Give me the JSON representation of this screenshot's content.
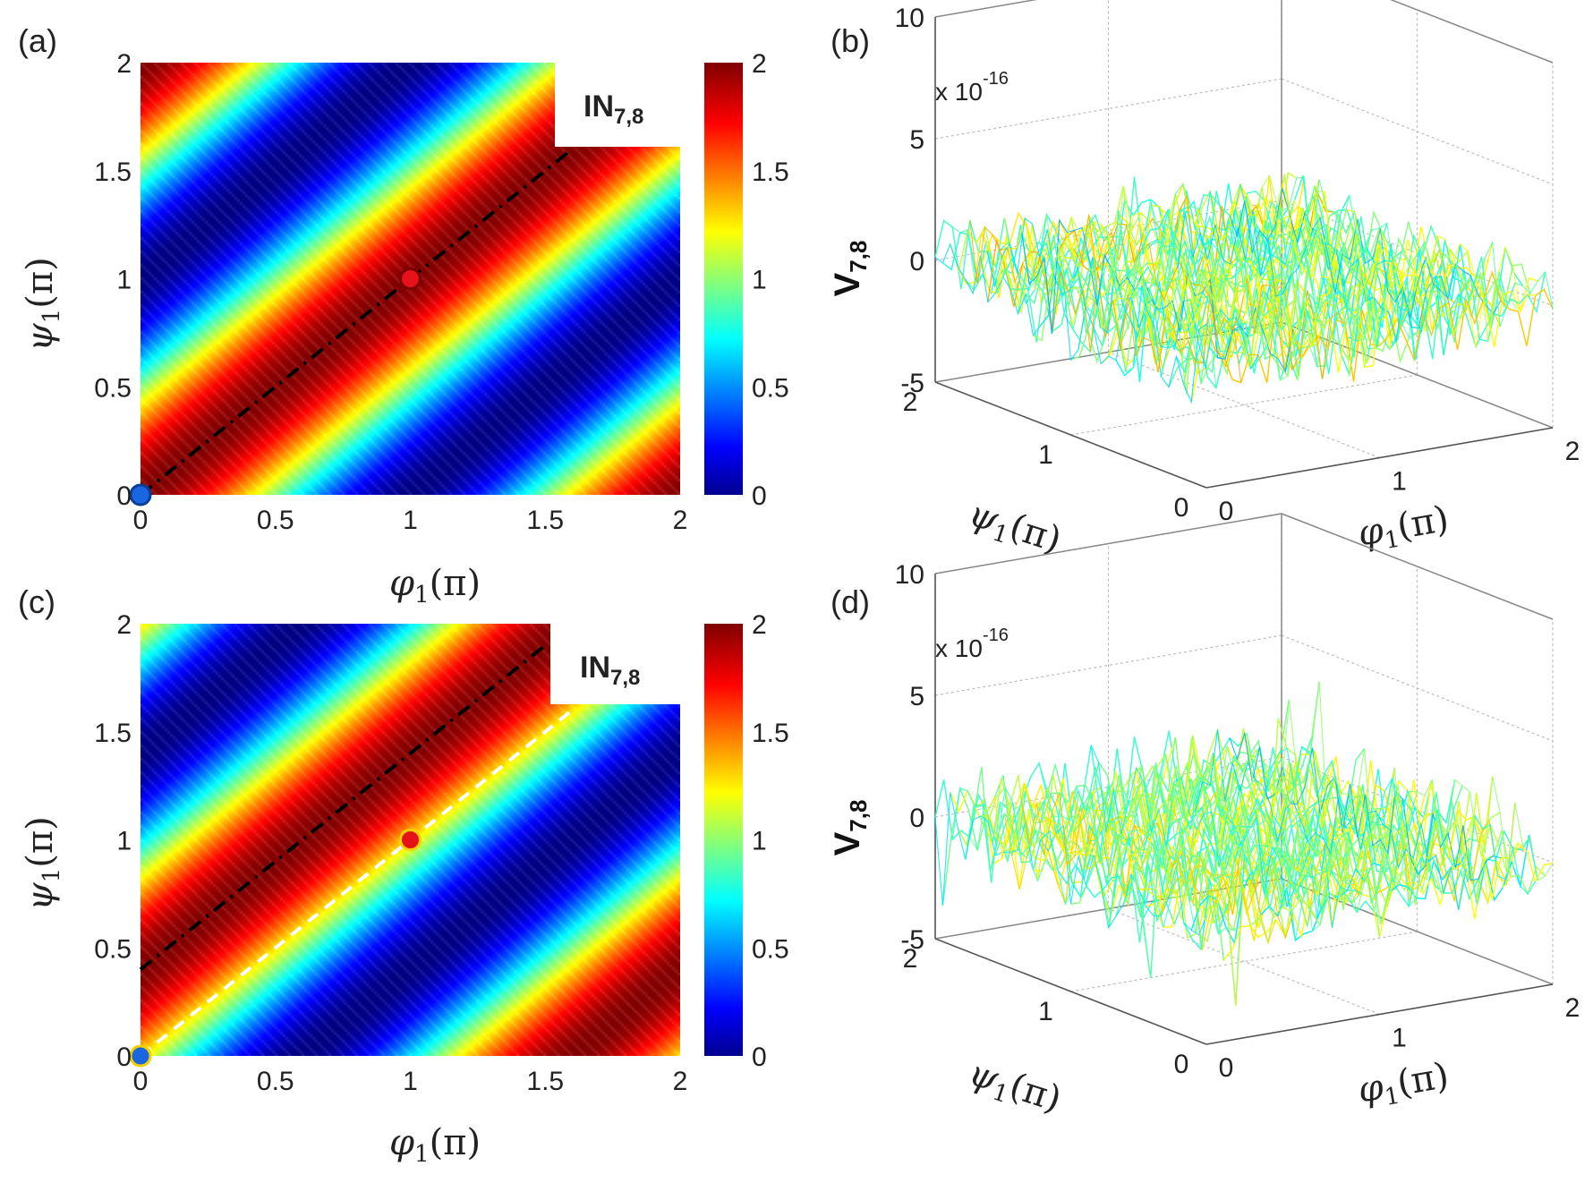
{
  "panels": [
    {
      "id": "a",
      "label": "(a)",
      "heatmap_title": "IN",
      "heatmap_title_sub": "7,8",
      "chart_data": {
        "type": "heatmap",
        "function": "IN = 1 + cos(pi*(psi1 - phi1))",
        "xlabel": "φ",
        "xlabel_sub": "1",
        "xlabel_unit": "(π)",
        "ylabel": "ψ",
        "ylabel_sub": "1",
        "ylabel_unit": "(π)",
        "xlim": [
          0,
          2
        ],
        "ylim": [
          0,
          2
        ],
        "xticks": [
          "0",
          "0.5",
          "1",
          "1.5",
          "2"
        ],
        "yticks": [
          "0",
          "0.5",
          "1",
          "1.5",
          "2"
        ],
        "colorbar_range": [
          0,
          2
        ],
        "colorbar_ticks": [
          "0",
          "0.5",
          "1",
          "1.5",
          "2"
        ],
        "lines": [
          {
            "style": "dash-dot",
            "color": "#000000",
            "x1": 0,
            "y1": 0,
            "x2": 1.6,
            "y2": 1.6
          }
        ],
        "markers": [
          {
            "x": 0,
            "y": 0,
            "color": "#1a66e0",
            "stroke": "#0b3f99"
          },
          {
            "x": 1,
            "y": 1,
            "color": "#e5121a",
            "stroke": "#7a0000"
          }
        ]
      }
    },
    {
      "id": "b",
      "label": "(b)",
      "chart_data": {
        "type": "surface3d",
        "zlabel": "V",
        "zlabel_sub": "7,8",
        "exponent_prefix": "x 10",
        "exponent": "-16",
        "zticks": [
          "-5",
          "0",
          "5",
          "10"
        ],
        "zlim": [
          -5,
          10
        ],
        "xlabel": "φ",
        "xlabel_sub": "1",
        "xlabel_unit": "(π)",
        "ylabel": "ψ",
        "ylabel_sub": "1",
        "ylabel_unit": "(π)",
        "xticks": [
          "0",
          "1",
          "2"
        ],
        "yticks": [
          "0",
          "1",
          "2"
        ]
      }
    },
    {
      "id": "c",
      "label": "(c)",
      "heatmap_title": "IN",
      "heatmap_title_sub": "7,8",
      "chart_data": {
        "type": "heatmap",
        "function": "IN = 1 + cos(pi*(psi1 - phi1 - 0.4))",
        "xlabel": "φ",
        "xlabel_sub": "1",
        "xlabel_unit": "(π)",
        "ylabel": "ψ",
        "ylabel_sub": "1",
        "ylabel_unit": "(π)",
        "xlim": [
          0,
          2
        ],
        "ylim": [
          0,
          2
        ],
        "xticks": [
          "0",
          "0.5",
          "1",
          "1.5",
          "2"
        ],
        "yticks": [
          "0",
          "0.5",
          "1",
          "1.5",
          "2"
        ],
        "colorbar_range": [
          0,
          2
        ],
        "colorbar_ticks": [
          "0",
          "0.5",
          "1",
          "1.5",
          "2"
        ],
        "lines": [
          {
            "style": "dash-dot",
            "color": "#000000",
            "x1": 0,
            "y1": 0.4,
            "x2": 1.5,
            "y2": 1.9
          },
          {
            "style": "dashed",
            "color": "#ffffff",
            "x1": 0,
            "y1": 0,
            "x2": 1.6,
            "y2": 1.6
          }
        ],
        "markers": [
          {
            "x": 0,
            "y": 0,
            "color": "#1a66e0",
            "stroke": "#f5d000"
          },
          {
            "x": 1,
            "y": 1,
            "color": "#e5121a",
            "stroke": "#f5d000"
          }
        ]
      }
    },
    {
      "id": "d",
      "label": "(d)",
      "chart_data": {
        "type": "surface3d",
        "zlabel": "V",
        "zlabel_sub": "7,8",
        "exponent_prefix": "x 10",
        "exponent": "-16",
        "zticks": [
          "-5",
          "0",
          "5",
          "10"
        ],
        "zlim": [
          -5,
          10
        ],
        "xlabel": "φ",
        "xlabel_sub": "1",
        "xlabel_unit": "(π)",
        "ylabel": "ψ",
        "ylabel_sub": "1",
        "ylabel_unit": "(π)",
        "xticks": [
          "0",
          "1",
          "2"
        ],
        "yticks": [
          "0",
          "1",
          "2"
        ]
      }
    }
  ]
}
